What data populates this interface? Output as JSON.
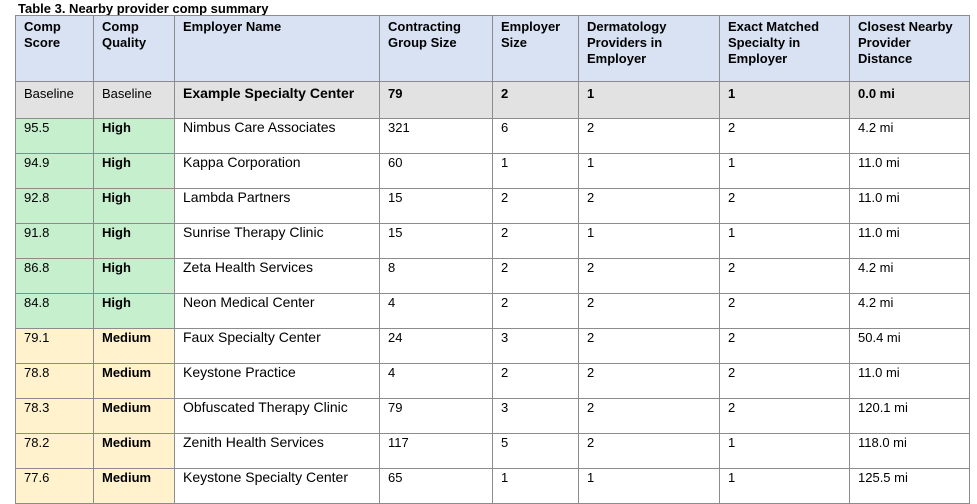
{
  "caption": "Table 3. Nearby provider comp summary",
  "columns": [
    "Comp Score",
    "Comp Quality",
    "Employer Name",
    "Contracting Group Size",
    "Employer Size",
    "Dermatology Providers in Employer",
    "Exact Matched Specialty in Employer",
    "Closest Nearby Provider Distance"
  ],
  "tier_colors": {
    "baseline": "#e2e2e2",
    "high": "#c6efce",
    "medium": "#fff2cc",
    "header": "#d9e2f3"
  },
  "rows": [
    {
      "tier": "baseline",
      "score": "Baseline",
      "quality": "Baseline",
      "employer": "Example Specialty Center",
      "contracting_group_size": "79",
      "employer_size": "2",
      "dermatology_providers": "1",
      "exact_matched_specialty": "1",
      "closest_distance": "0.0 mi"
    },
    {
      "tier": "high",
      "score": "95.5",
      "quality": "High",
      "employer": "Nimbus Care Associates",
      "contracting_group_size": "321",
      "employer_size": "6",
      "dermatology_providers": "2",
      "exact_matched_specialty": "2",
      "closest_distance": "4.2 mi"
    },
    {
      "tier": "high",
      "score": "94.9",
      "quality": "High",
      "employer": "Kappa Corporation",
      "contracting_group_size": "60",
      "employer_size": "1",
      "dermatology_providers": "1",
      "exact_matched_specialty": "1",
      "closest_distance": "11.0 mi"
    },
    {
      "tier": "high",
      "score": "92.8",
      "quality": "High",
      "employer": "Lambda Partners",
      "contracting_group_size": "15",
      "employer_size": "2",
      "dermatology_providers": "2",
      "exact_matched_specialty": "2",
      "closest_distance": "11.0 mi"
    },
    {
      "tier": "high",
      "score": "91.8",
      "quality": "High",
      "employer": "Sunrise Therapy Clinic",
      "contracting_group_size": "15",
      "employer_size": "2",
      "dermatology_providers": "1",
      "exact_matched_specialty": "1",
      "closest_distance": "11.0 mi"
    },
    {
      "tier": "high",
      "score": "86.8",
      "quality": "High",
      "employer": "Zeta Health Services",
      "contracting_group_size": "8",
      "employer_size": "2",
      "dermatology_providers": "2",
      "exact_matched_specialty": "2",
      "closest_distance": "4.2 mi"
    },
    {
      "tier": "high",
      "score": "84.8",
      "quality": "High",
      "employer": "Neon Medical Center",
      "contracting_group_size": "4",
      "employer_size": "2",
      "dermatology_providers": "2",
      "exact_matched_specialty": "2",
      "closest_distance": "4.2 mi"
    },
    {
      "tier": "medium",
      "score": "79.1",
      "quality": "Medium",
      "employer": "Faux Specialty Center",
      "contracting_group_size": "24",
      "employer_size": "3",
      "dermatology_providers": "2",
      "exact_matched_specialty": "2",
      "closest_distance": "50.4 mi"
    },
    {
      "tier": "medium",
      "score": "78.8",
      "quality": "Medium",
      "employer": "Keystone Practice",
      "contracting_group_size": "4",
      "employer_size": "2",
      "dermatology_providers": "2",
      "exact_matched_specialty": "2",
      "closest_distance": "11.0 mi"
    },
    {
      "tier": "medium",
      "score": "78.3",
      "quality": "Medium",
      "employer": "Obfuscated Therapy Clinic",
      "contracting_group_size": "79",
      "employer_size": "3",
      "dermatology_providers": "2",
      "exact_matched_specialty": "2",
      "closest_distance": "120.1 mi"
    },
    {
      "tier": "medium",
      "score": "78.2",
      "quality": "Medium",
      "employer": "Zenith Health Services",
      "contracting_group_size": "117",
      "employer_size": "5",
      "dermatology_providers": "2",
      "exact_matched_specialty": "1",
      "closest_distance": "118.0 mi"
    },
    {
      "tier": "medium",
      "score": "77.6",
      "quality": "Medium",
      "employer": "Keystone Specialty Center",
      "contracting_group_size": "65",
      "employer_size": "1",
      "dermatology_providers": "1",
      "exact_matched_specialty": "1",
      "closest_distance": "125.5 mi"
    }
  ]
}
